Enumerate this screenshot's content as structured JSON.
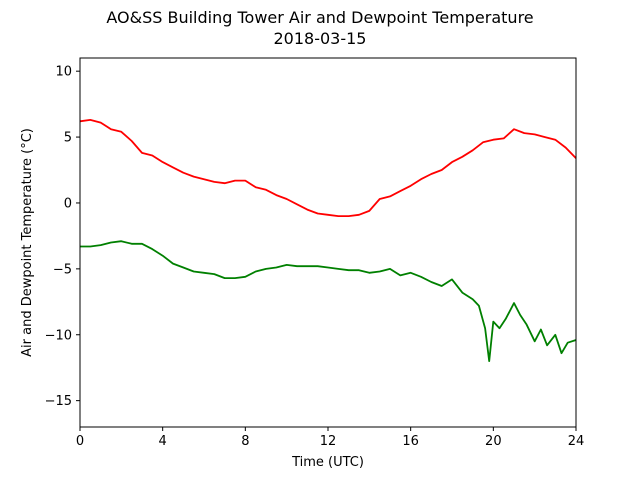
{
  "chart_data": {
    "type": "line",
    "title": "AO&SS Building Tower Air and Dewpoint Temperature",
    "subtitle": "2018-03-15",
    "xlabel": "Time (UTC)",
    "ylabel": "Air and Dewpoint Temperature (°C)",
    "xlim": [
      0,
      24
    ],
    "ylim": [
      -17,
      11
    ],
    "xticks": [
      0,
      4,
      8,
      12,
      16,
      20,
      24
    ],
    "yticks": [
      -15,
      -10,
      -5,
      0,
      5,
      10
    ],
    "grid": false,
    "legend": "none",
    "series": [
      {
        "color": "#ff0000",
        "x": [
          0,
          0.5,
          1,
          1.5,
          2,
          2.5,
          3,
          3.5,
          4,
          4.5,
          5,
          5.5,
          6,
          6.5,
          7,
          7.5,
          8,
          8.5,
          9,
          9.5,
          10,
          10.5,
          11,
          11.5,
          12,
          12.5,
          13,
          13.5,
          14,
          14.5,
          15,
          15.5,
          16,
          16.5,
          17,
          17.5,
          18,
          18.5,
          19,
          19.5,
          20,
          20.5,
          21,
          21.5,
          22,
          22.5,
          23,
          23.5,
          24
        ],
        "y": [
          6.2,
          6.3,
          6.1,
          5.6,
          5.4,
          4.7,
          3.8,
          3.6,
          3.1,
          2.7,
          2.3,
          2.0,
          1.8,
          1.6,
          1.5,
          1.7,
          1.7,
          1.2,
          1.0,
          0.6,
          0.3,
          -0.1,
          -0.5,
          -0.8,
          -0.9,
          -1.0,
          -1.0,
          -0.9,
          -0.6,
          0.3,
          0.5,
          0.9,
          1.3,
          1.8,
          2.2,
          2.5,
          3.1,
          3.5,
          4.0,
          4.6,
          4.8,
          4.9,
          5.6,
          5.3,
          5.2,
          5.0,
          4.8,
          4.2,
          3.4
        ]
      },
      {
        "color": "#008000",
        "x": [
          0,
          0.5,
          1,
          1.5,
          2,
          2.5,
          3,
          3.5,
          4,
          4.5,
          5,
          5.5,
          6,
          6.5,
          7,
          7.5,
          8,
          8.5,
          9,
          9.5,
          10,
          10.5,
          11,
          11.5,
          12,
          12.5,
          13,
          13.5,
          14,
          14.5,
          15,
          15.5,
          16,
          16.5,
          17,
          17.5,
          18,
          18.5,
          19,
          19.3,
          19.6,
          19.8,
          20,
          20.3,
          20.6,
          21,
          21.3,
          21.6,
          22,
          22.3,
          22.6,
          23,
          23.3,
          23.6,
          24
        ],
        "y": [
          -3.3,
          -3.3,
          -3.2,
          -3.0,
          -2.9,
          -3.1,
          -3.1,
          -3.5,
          -4.0,
          -4.6,
          -4.9,
          -5.2,
          -5.3,
          -5.4,
          -5.7,
          -5.7,
          -5.6,
          -5.2,
          -5.0,
          -4.9,
          -4.7,
          -4.8,
          -4.8,
          -4.8,
          -4.9,
          -5.0,
          -5.1,
          -5.1,
          -5.3,
          -5.2,
          -5.0,
          -5.5,
          -5.3,
          -5.6,
          -6.0,
          -6.3,
          -5.8,
          -6.8,
          -7.3,
          -7.8,
          -9.5,
          -12.0,
          -9.0,
          -9.5,
          -8.8,
          -7.6,
          -8.5,
          -9.2,
          -10.5,
          -9.6,
          -10.8,
          -10.0,
          -11.4,
          -10.6,
          -10.4
        ]
      }
    ]
  }
}
